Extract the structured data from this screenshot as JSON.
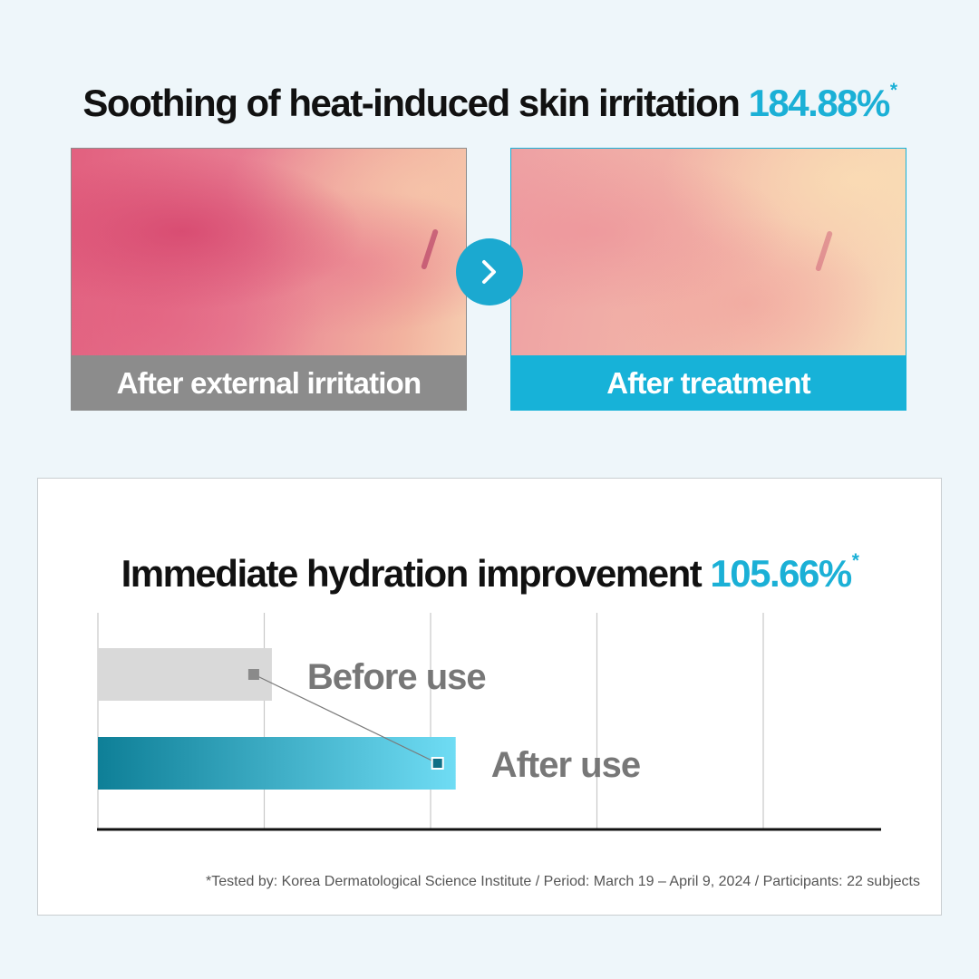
{
  "section1": {
    "title": "Soothing of heat-induced skin irritation",
    "percent": "184.88%",
    "asterisk": "*",
    "before_caption": "After external irritation",
    "after_caption": "After treatment",
    "arrow_glyph": ">"
  },
  "section2": {
    "title": "Immediate hydration improvement",
    "percent": "105.66%",
    "asterisk": "*"
  },
  "chart_data": {
    "type": "bar",
    "orientation": "horizontal",
    "categories": [
      "Before use",
      "After use"
    ],
    "values": [
      1.0,
      2.0566
    ],
    "xlim": [
      0,
      4.7
    ],
    "grid": true,
    "legend": "none",
    "colors": {
      "before": "#d9d9d9",
      "after_start": "#0e7f97",
      "after_end": "#6fdcf4"
    }
  },
  "colors": {
    "accent": "#1bb0d6",
    "gray": "#8c8c8c"
  },
  "footnote": "*Tested by: Korea Dermatological Science Institute / Period: March 19 – April 9, 2024 / Participants: 22 subjects"
}
